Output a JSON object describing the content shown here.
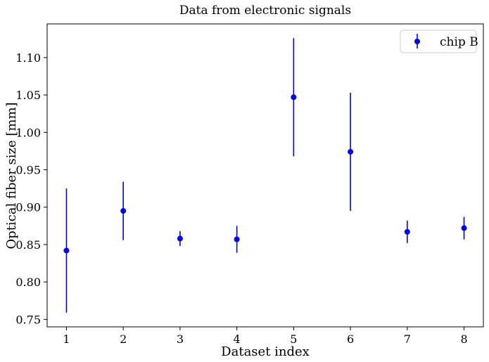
{
  "chart_data": {
    "type": "scatter",
    "title": "Data from electronic signals",
    "xlabel": "Dataset index",
    "ylabel": "Optical fiber size [mm]",
    "xlim": [
      0.66,
      8.34
    ],
    "ylim": [
      0.74,
      1.145
    ],
    "xticks": [
      1,
      2,
      3,
      4,
      5,
      6,
      7,
      8
    ],
    "yticks": [
      0.75,
      0.8,
      0.85,
      0.9,
      0.95,
      1.0,
      1.05,
      1.1
    ],
    "ytick_labels": [
      "0.75",
      "0.80",
      "0.85",
      "0.90",
      "0.95",
      "1.00",
      "1.05",
      "1.10"
    ],
    "legend_position": "top-right",
    "grid": false,
    "series": [
      {
        "name": "chip B",
        "color": "#0000ff",
        "marker": "circle-with-errorbars",
        "x": [
          1,
          2,
          3,
          4,
          5,
          6,
          7,
          8
        ],
        "y": [
          0.842,
          0.895,
          0.858,
          0.857,
          1.047,
          0.974,
          0.867,
          0.872
        ],
        "yerr": [
          0.083,
          0.039,
          0.01,
          0.018,
          0.079,
          0.079,
          0.015,
          0.015
        ]
      }
    ]
  }
}
